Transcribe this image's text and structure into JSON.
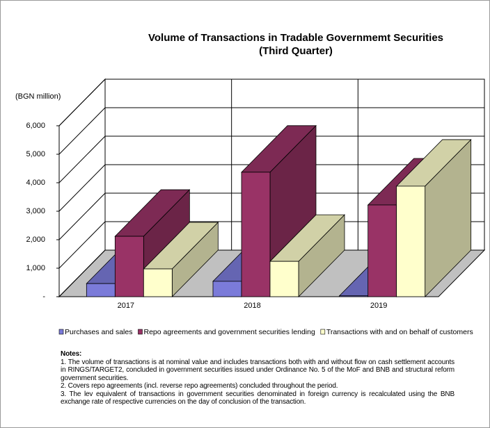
{
  "chart_data": {
    "type": "bar3d",
    "title": "Volume of Transactions in Tradable Governmemt Securities",
    "subtitle": "(Third Quarter)",
    "y_label": "(BGN million)",
    "categories": [
      "2017",
      "2018",
      "2019"
    ],
    "series": [
      {
        "name": "Purchases and sales",
        "color": "#7b7bd9",
        "values": [
          460,
          540,
          30
        ]
      },
      {
        "name": "Repo agreements and government securities lending",
        "color": "#993366",
        "values": [
          2120,
          4370,
          3220
        ]
      },
      {
        "name": "Transactions with and on behalf of customers",
        "color": "#ffffcc",
        "values": [
          975,
          1240,
          3880
        ]
      }
    ],
    "ylim": [
      0,
      6000
    ],
    "yticks": [
      {
        "value": 0,
        "label": "-"
      },
      {
        "value": 1000,
        "label": "1,000"
      },
      {
        "value": 2000,
        "label": "2,000"
      },
      {
        "value": 3000,
        "label": "3,000"
      },
      {
        "value": 4000,
        "label": "4,000"
      },
      {
        "value": 5000,
        "label": "5,000"
      },
      {
        "value": 6000,
        "label": "6,000"
      }
    ],
    "grid": true,
    "notes": {
      "heading": "Notes:",
      "items": [
        "1.  The volume of transactions is at nominal value and includes transactions both with and without flow on cash settlement accounts in RINGS/TARGET2, concluded in government securities issued under Ordinance No. 5 of the MoF and BNB and structural reform government securities.",
        "2. Covers repo agreements (incl. reverse repo agreements) concluded throughout the period.",
        "3. The lev equivalent of transactions in government securities denominated in foreign currency is recalculated using the BNB exchange rate of respective currencies on the day of conclusion of the transaction."
      ]
    }
  }
}
